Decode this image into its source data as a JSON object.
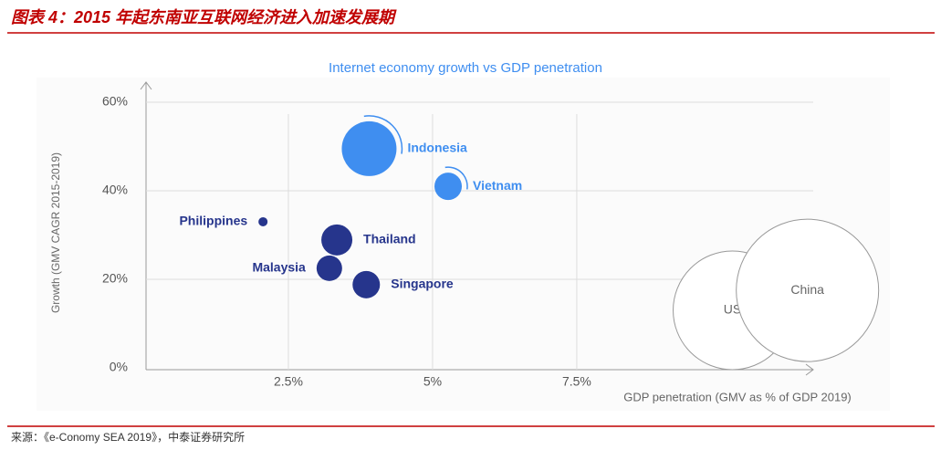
{
  "header": {
    "title": "图表 4：2015 年起东南亚互联网经济进入加速发展期"
  },
  "chart_data": {
    "type": "bubble",
    "title": "Internet economy growth vs GDP penetration",
    "x_label": "GDP penetration (GMV as % of GDP 2019)",
    "y_label": "Growth (GMV CAGR 2015-2019)",
    "xlim": [
      0,
      11.6
    ],
    "ylim": [
      0,
      60
    ],
    "xticks": [
      {
        "value": 2.5,
        "label": "2.5%"
      },
      {
        "value": 5,
        "label": "5%"
      },
      {
        "value": 7.5,
        "label": "7.5%"
      }
    ],
    "yticks": [
      {
        "value": 0,
        "label": "0%"
      },
      {
        "value": 20,
        "label": "20%"
      },
      {
        "value": 40,
        "label": "40%"
      },
      {
        "value": 60,
        "label": "60%"
      }
    ],
    "grid": true,
    "points": [
      {
        "name": "Indonesia",
        "x": 3.9,
        "y": 49.5,
        "size": 30,
        "color": "#3f8ef0"
      },
      {
        "name": "Vietnam",
        "x": 5.27,
        "y": 41,
        "size": 15,
        "color": "#3f8ef0"
      },
      {
        "name": "Philippines",
        "x": 2.06,
        "y": 33,
        "size": 5,
        "color": "#26358c"
      },
      {
        "name": "Thailand",
        "x": 3.34,
        "y": 28.9,
        "size": 17,
        "color": "#26358c"
      },
      {
        "name": "Malaysia",
        "x": 3.21,
        "y": 22.5,
        "size": 14,
        "color": "#26358c"
      },
      {
        "name": "Singapore",
        "x": 3.85,
        "y": 18.8,
        "size": 15,
        "color": "#26358c"
      },
      {
        "name": "US",
        "x": 10.2,
        "y": 13,
        "size": 65,
        "color": "#ffffff"
      },
      {
        "name": "China",
        "x": 11.5,
        "y": 17.5,
        "size": 78,
        "color": "#ffffff"
      }
    ]
  },
  "footer": {
    "source": "来源：《e-Conomy SEA 2019》，中泰证券研究所"
  }
}
